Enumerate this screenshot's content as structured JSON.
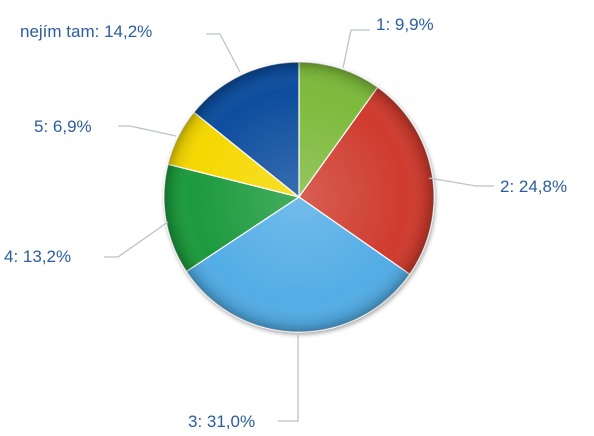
{
  "chart_data": {
    "type": "pie",
    "title": "",
    "slices": [
      {
        "label": "1",
        "value": 9.9,
        "display": "1: 9,9%",
        "color": "#7dba3a"
      },
      {
        "label": "2",
        "value": 24.8,
        "display": "2: 24,8%",
        "color": "#cf3a2e"
      },
      {
        "label": "3",
        "value": 31.0,
        "display": "3: 31,0%",
        "color": "#52ade6"
      },
      {
        "label": "4",
        "value": 13.2,
        "display": "4: 13,2%",
        "color": "#1f9a3c"
      },
      {
        "label": "5",
        "value": 6.9,
        "display": "5: 6,9%",
        "color": "#f5d800"
      },
      {
        "label": "nejím tam",
        "value": 14.2,
        "display": "nejím tam: 14,2%",
        "color": "#104d9e"
      }
    ],
    "start_angle": "12 o'clock",
    "direction": "clockwise",
    "legend": "none",
    "label_color": "#2a5d9c"
  }
}
